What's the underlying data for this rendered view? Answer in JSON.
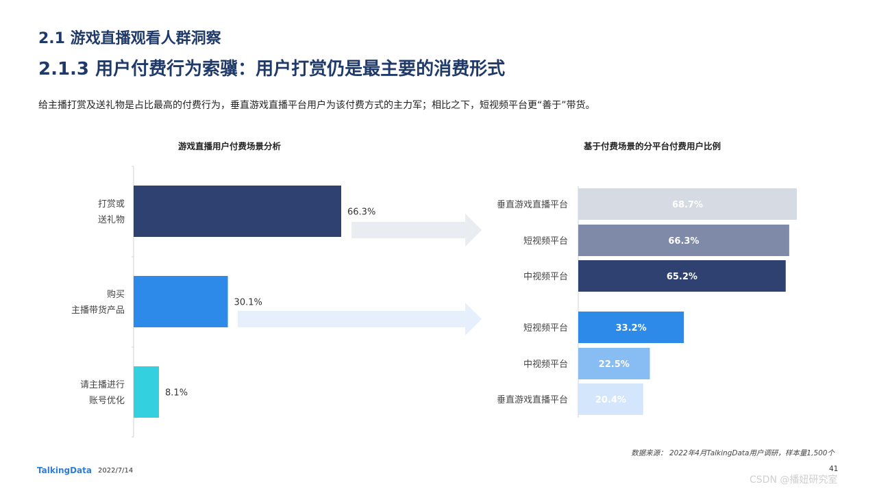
{
  "header": {
    "title1": "2.1 游戏直播观看人群洞察",
    "title2": "2.1.3 用户付费行为索骥：用户打赏仍是最主要的消费形式",
    "subtitle": "给主播打赏及送礼物是占比最高的付费行为，垂直游戏直播平台用户为该付费方式的主力军；相比之下，短视频平台更“善于”带货。"
  },
  "chart_data": [
    {
      "type": "bar",
      "orientation": "horizontal",
      "title": "游戏直播用户付费场景分析",
      "categories": [
        [
          "打赏或",
          "送礼物"
        ],
        [
          "购买",
          "主播带货产品"
        ],
        [
          "请主播进行",
          "账号优化"
        ]
      ],
      "values": [
        66.3,
        30.1,
        8.1
      ],
      "value_labels": [
        "66.3%",
        "30.1%",
        "8.1%"
      ],
      "colors": [
        "#2f4170",
        "#2e8ae8",
        "#33d1e0"
      ],
      "xlim": [
        0,
        100
      ],
      "grid": false
    },
    {
      "type": "bar",
      "orientation": "horizontal",
      "title": "基于付费场景的分平台付费用户比例",
      "groups": [
        {
          "categories": [
            "垂直游戏直播平台",
            "短视频平台",
            "中视频平台"
          ],
          "values": [
            68.7,
            66.3,
            65.2
          ],
          "value_labels": [
            "68.7%",
            "66.3%",
            "65.2%"
          ],
          "colors": [
            "#d6dae3",
            "#7f8aa8",
            "#2f4170"
          ]
        },
        {
          "categories": [
            "短视频平台",
            "中视频平台",
            "垂直游戏直播平台"
          ],
          "values": [
            33.2,
            22.5,
            20.4
          ],
          "value_labels": [
            "33.2%",
            "22.5%",
            "20.4%"
          ],
          "colors": [
            "#2e8ae8",
            "#87bdf3",
            "#d4e6fb"
          ]
        }
      ],
      "xlim": [
        0,
        100
      ],
      "grid": false
    }
  ],
  "arrow_colors": [
    "#e9ecf1",
    "#e6f0fc"
  ],
  "footer": {
    "source": "数据来源： 2022年4月TalkingData用户调研，样本量1,500个",
    "logo": "TalkingData",
    "date": "2022/7/14",
    "page": "41",
    "watermark": "CSDN @播妞研究室"
  }
}
